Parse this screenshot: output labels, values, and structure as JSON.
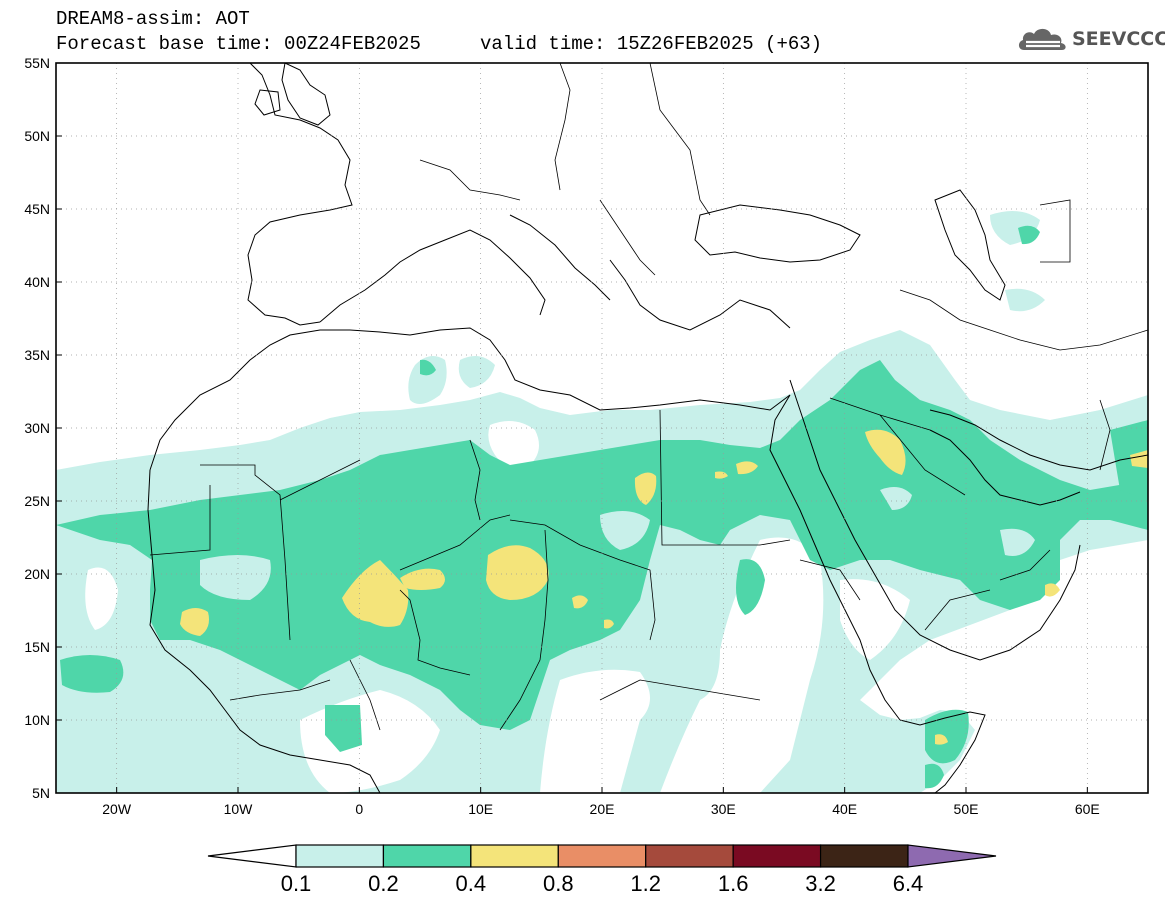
{
  "header": {
    "title": "DREAM8-assim: AOT",
    "base_time": "Forecast base time: 00Z24FEB2025",
    "valid_time": "valid time: 15Z26FEB2025 (+63)",
    "logo_text": "SEEVCCC",
    "logo_icon": "cloud-icon"
  },
  "map": {
    "lon_range": [
      -25,
      65
    ],
    "lat_range": [
      5,
      55
    ],
    "lat_ticks": [
      {
        "value": 55,
        "label": "55N"
      },
      {
        "value": 50,
        "label": "50N"
      },
      {
        "value": 45,
        "label": "45N"
      },
      {
        "value": 40,
        "label": "40N"
      },
      {
        "value": 35,
        "label": "35N"
      },
      {
        "value": 30,
        "label": "30N"
      },
      {
        "value": 25,
        "label": "25N"
      },
      {
        "value": 20,
        "label": "20N"
      },
      {
        "value": 15,
        "label": "15N"
      },
      {
        "value": 10,
        "label": "10N"
      },
      {
        "value": 5,
        "label": "5N"
      }
    ],
    "lon_ticks": [
      {
        "value": -20,
        "label": "20W"
      },
      {
        "value": -10,
        "label": "10W"
      },
      {
        "value": 0,
        "label": "0"
      },
      {
        "value": 10,
        "label": "10E"
      },
      {
        "value": 20,
        "label": "20E"
      },
      {
        "value": 30,
        "label": "30E"
      },
      {
        "value": 40,
        "label": "40E"
      },
      {
        "value": 50,
        "label": "50E"
      },
      {
        "value": 60,
        "label": "60E"
      }
    ],
    "colors": {
      "c01": "#c8f0ea",
      "c02": "#4fd6a9",
      "c04": "#f4e47a",
      "coast": "#000000",
      "grid": "#999999"
    }
  },
  "colorbar": {
    "labels": [
      "0.1",
      "0.2",
      "0.4",
      "0.8",
      "1.2",
      "1.6",
      "3.2",
      "6.4"
    ],
    "colors": [
      "#ffffff",
      "#c8f0ea",
      "#4fd6a9",
      "#f4e47a",
      "#e98e66",
      "#a54a3c",
      "#7a0a22",
      "#3c2416",
      "#8e6ab0"
    ]
  }
}
